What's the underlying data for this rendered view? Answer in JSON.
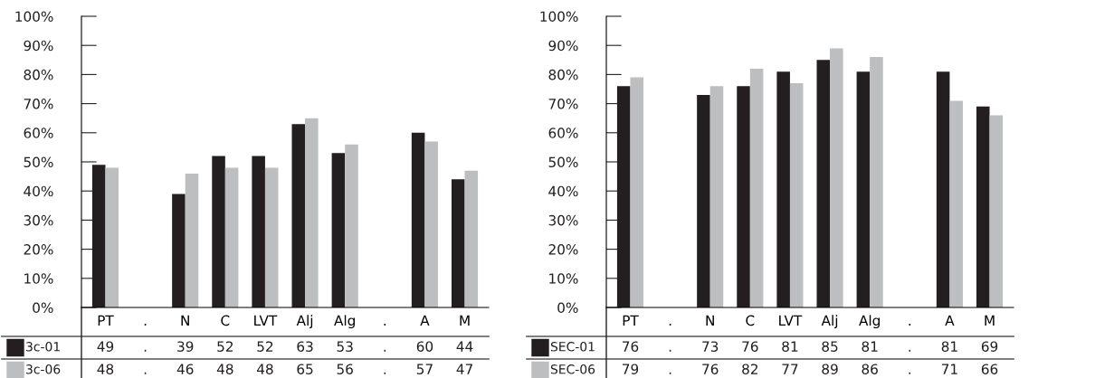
{
  "chart_data": [
    {
      "type": "bar",
      "categories": [
        "PT",
        ".",
        "N",
        "C",
        "LVT",
        "Alj",
        "Alg",
        ".",
        "A",
        "M"
      ],
      "ylim": [
        0,
        100
      ],
      "yticks": [
        {
          "value": 0,
          "label": "0%"
        },
        {
          "value": 10,
          "label": "10%"
        },
        {
          "value": 20,
          "label": "20%"
        },
        {
          "value": 30,
          "label": "30%"
        },
        {
          "value": 40,
          "label": "40%"
        },
        {
          "value": 50,
          "label": "50%"
        },
        {
          "value": 60,
          "label": "60%"
        },
        {
          "value": 70,
          "label": "70%"
        },
        {
          "value": 80,
          "label": "80%"
        },
        {
          "value": 90,
          "label": "90%"
        },
        {
          "value": 100,
          "label": "100%"
        }
      ],
      "legend": "bottom",
      "grid": false,
      "series": [
        {
          "name": "3c-01",
          "color": "#231f20",
          "values": [
            49,
            null,
            39,
            52,
            52,
            63,
            53,
            null,
            60,
            44
          ],
          "value_labels": [
            "49",
            ".",
            "39",
            "52",
            "52",
            "63",
            "53",
            ".",
            "60",
            "44"
          ]
        },
        {
          "name": "3c-06",
          "color": "#bcbec0",
          "values": [
            48,
            null,
            46,
            48,
            48,
            65,
            56,
            null,
            57,
            47
          ],
          "value_labels": [
            "48",
            ".",
            "46",
            "48",
            "48",
            "65",
            "56",
            ".",
            "57",
            "47"
          ]
        }
      ]
    },
    {
      "type": "bar",
      "categories": [
        "PT",
        ".",
        "N",
        "C",
        "LVT",
        "Alj",
        "Alg",
        ".",
        "A",
        "M"
      ],
      "ylim": [
        0,
        100
      ],
      "yticks": [
        {
          "value": 0,
          "label": "0%"
        },
        {
          "value": 10,
          "label": "10%"
        },
        {
          "value": 20,
          "label": "20%"
        },
        {
          "value": 30,
          "label": "30%"
        },
        {
          "value": 40,
          "label": "40%"
        },
        {
          "value": 50,
          "label": "50%"
        },
        {
          "value": 60,
          "label": "60%"
        },
        {
          "value": 70,
          "label": "70%"
        },
        {
          "value": 80,
          "label": "80%"
        },
        {
          "value": 90,
          "label": "90%"
        },
        {
          "value": 100,
          "label": "100%"
        }
      ],
      "legend": "bottom",
      "grid": false,
      "series": [
        {
          "name": "SEC-01",
          "color": "#231f20",
          "values": [
            76,
            null,
            73,
            76,
            81,
            85,
            81,
            null,
            81,
            69
          ],
          "value_labels": [
            "76",
            ".",
            "73",
            "76",
            "81",
            "85",
            "81",
            ".",
            "81",
            "69"
          ]
        },
        {
          "name": "SEC-06",
          "color": "#bcbec0",
          "values": [
            79,
            null,
            76,
            82,
            77,
            89,
            86,
            null,
            71,
            66
          ],
          "value_labels": [
            "79",
            ".",
            "76",
            "82",
            "77",
            "89",
            "86",
            ".",
            "71",
            "66"
          ]
        }
      ]
    }
  ]
}
